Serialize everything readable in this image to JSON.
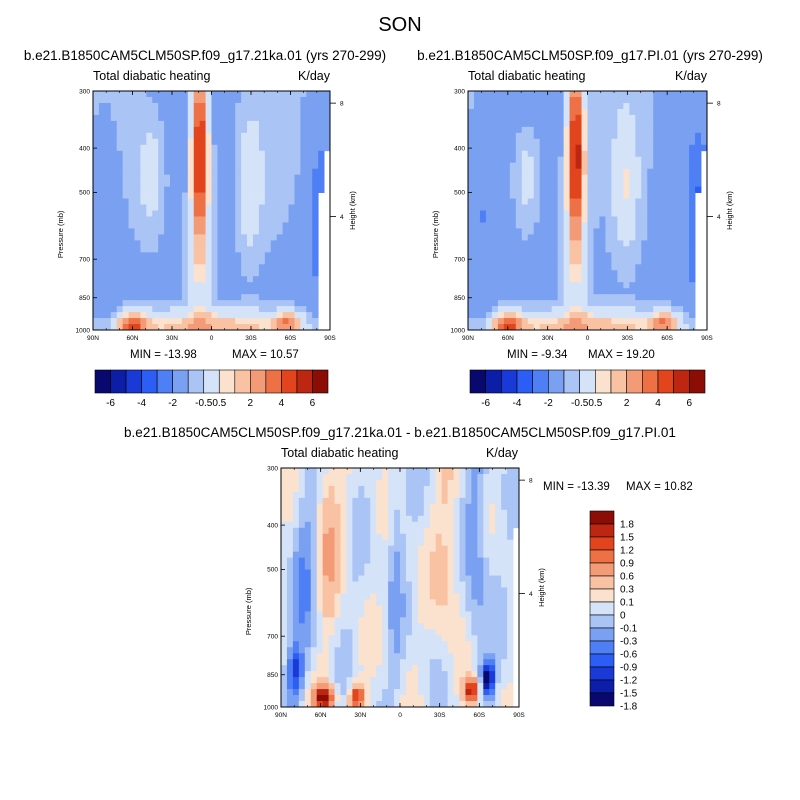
{
  "main_title": "SON",
  "units": "K/day",
  "field_name": "Total diabatic heating",
  "colors": {
    "palette": [
      "#08086e",
      "#0c1da8",
      "#1a3ad8",
      "#2c5ef5",
      "#4f7ff4",
      "#7aa0f2",
      "#a9c4f5",
      "#d5e3f8",
      "#fbe2cf",
      "#f8c2a3",
      "#f39b77",
      "#ee7045",
      "#e2441e",
      "#bd2610",
      "#8b0d06"
    ],
    "diff_palette": [
      "#08086e",
      "#0c1da8",
      "#1a3ad8",
      "#2c5ef5",
      "#4f7ff4",
      "#7aa0f2",
      "#a9c4f5",
      "#d5e3f8",
      "#fbe2cf",
      "#f8c2a3",
      "#f39b77",
      "#ee7045",
      "#e2441e",
      "#bd2610",
      "#8b0d06"
    ]
  },
  "chart_data": [
    {
      "type": "heatmap",
      "case_title": "b.e21.B1850CAM5CLM50SP.f09_g17.21ka.01 (yrs 270-299)",
      "title": "Total diabatic heating",
      "units": "K/day",
      "xlabel": "",
      "ylabel": "Pressure (mb)",
      "y2label": "Height (km)",
      "x_ticks": [
        "90N",
        "60N",
        "30N",
        "0",
        "30S",
        "60S",
        "90S"
      ],
      "x_tick_values": [
        90,
        60,
        30,
        0,
        -30,
        -60,
        -90
      ],
      "y_ticks": [
        300,
        400,
        500,
        700,
        850,
        1000
      ],
      "y_ticks_labels": [
        "300",
        "400",
        "500",
        "700",
        "850",
        "1000"
      ],
      "y2_ticks": [
        "8",
        "4"
      ],
      "y2_tick_values": [
        8,
        4
      ],
      "xlim": [
        90,
        -90
      ],
      "ylim": [
        1000,
        300
      ],
      "min_text": "MIN = -13.98",
      "max_text": "MAX =  10.57",
      "min": -13.98,
      "max": 10.57
    },
    {
      "type": "heatmap",
      "case_title": "b.e21.B1850CAM5CLM50SP.f09_g17.PI.01 (yrs 270-299)",
      "title": "Total diabatic heating",
      "units": "K/day",
      "xlabel": "",
      "ylabel": "Pressure (mb)",
      "y2label": "Height (km)",
      "x_ticks": [
        "90N",
        "60N",
        "30N",
        "0",
        "30S",
        "60S",
        "90S"
      ],
      "x_tick_values": [
        90,
        60,
        30,
        0,
        -30,
        -60,
        -90
      ],
      "y_ticks": [
        300,
        400,
        500,
        700,
        850,
        1000
      ],
      "y_ticks_labels": [
        "300",
        "400",
        "500",
        "700",
        "850",
        "1000"
      ],
      "y2_ticks": [
        "8",
        "4"
      ],
      "y2_tick_values": [
        8,
        4
      ],
      "xlim": [
        90,
        -90
      ],
      "ylim": [
        1000,
        300
      ],
      "min_text": "MIN =  -9.34",
      "max_text": "MAX =  19.20",
      "min": -9.34,
      "max": 19.2
    },
    {
      "type": "heatmap",
      "case_title": "b.e21.B1850CAM5CLM50SP.f09_g17.21ka.01 - b.e21.B1850CAM5CLM50SP.f09_g17.PI.01",
      "title": "Total diabatic heating",
      "units": "K/day",
      "xlabel": "",
      "ylabel": "Pressure (mb)",
      "y2label": "Height (km)",
      "x_ticks": [
        "90N",
        "60N",
        "30N",
        "0",
        "30S",
        "60S",
        "90S"
      ],
      "x_tick_values": [
        90,
        60,
        30,
        0,
        -30,
        -60,
        -90
      ],
      "y_ticks": [
        300,
        400,
        500,
        700,
        850,
        1000
      ],
      "y_ticks_labels": [
        "300",
        "400",
        "500",
        "700",
        "850",
        "1000"
      ],
      "y2_ticks": [
        "8",
        "4"
      ],
      "y2_tick_values": [
        8,
        4
      ],
      "xlim": [
        90,
        -90
      ],
      "ylim": [
        1000,
        300
      ],
      "min_text": "MIN = -13.39",
      "max_text": "MAX =  10.82",
      "min": -13.39,
      "max": 10.82
    }
  ],
  "colorbar_main": {
    "labels": [
      "-6",
      "-4",
      "-2",
      "-0.5",
      "0.5",
      "2",
      "4",
      "6"
    ],
    "levels": [
      -8,
      -7,
      -6,
      -5,
      -4,
      -3,
      -2,
      -1,
      -0.5,
      0.5,
      1,
      2,
      3,
      4,
      5,
      6,
      7,
      8
    ]
  },
  "colorbar_diff": {
    "labels": [
      "1.8",
      "1.5",
      "1.2",
      "0.9",
      "0.6",
      "0.3",
      "0.1",
      "0",
      "-0.1",
      "-0.3",
      "-0.6",
      "-0.9",
      "-1.2",
      "-1.5",
      "-1.8"
    ],
    "levels": [
      1.8,
      1.5,
      1.2,
      0.9,
      0.6,
      0.3,
      0.1,
      0,
      -0.1,
      -0.3,
      -0.6,
      -0.9,
      -1.2,
      -1.5,
      -1.8
    ]
  }
}
